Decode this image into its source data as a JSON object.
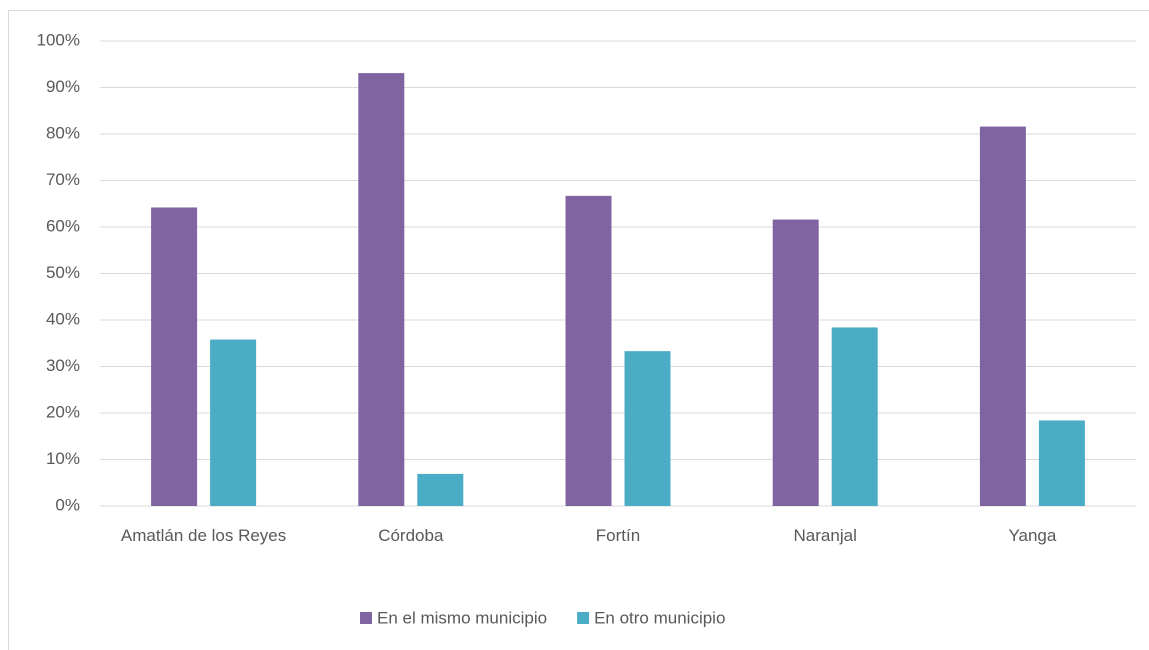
{
  "chart_data": {
    "type": "bar",
    "categories": [
      "Amatlán de los Reyes",
      "Córdoba",
      "Fortín",
      "Naranjal",
      "Yanga"
    ],
    "series": [
      {
        "name": "En el mismo municipio",
        "color": "#8064a2",
        "values": [
          64.2,
          93.1,
          66.7,
          61.6,
          81.6
        ]
      },
      {
        "name": "En otro municipio",
        "color": "#4bacc6",
        "values": [
          35.8,
          6.9,
          33.3,
          38.4,
          18.4
        ]
      }
    ],
    "ylim": [
      0,
      100
    ],
    "yticks": [
      {
        "value": 0,
        "label": "0%"
      },
      {
        "value": 10,
        "label": "10%"
      },
      {
        "value": 20,
        "label": "20%"
      },
      {
        "value": 30,
        "label": "30%"
      },
      {
        "value": 40,
        "label": "40%"
      },
      {
        "value": 50,
        "label": "50%"
      },
      {
        "value": 60,
        "label": "60%"
      },
      {
        "value": 70,
        "label": "70%"
      },
      {
        "value": 80,
        "label": "80%"
      },
      {
        "value": 90,
        "label": "90%"
      },
      {
        "value": 100,
        "label": "100%"
      }
    ],
    "grid": true,
    "legend": "bottom"
  }
}
